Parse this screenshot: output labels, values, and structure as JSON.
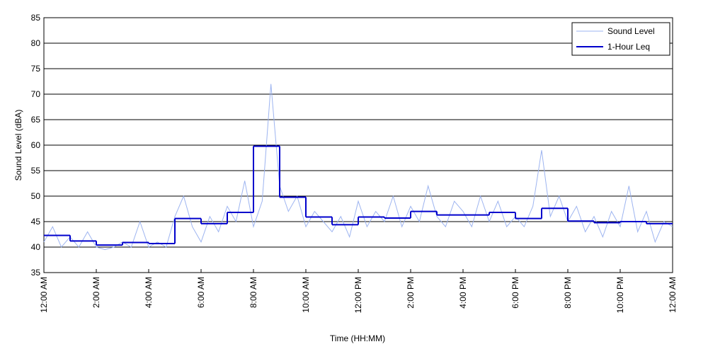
{
  "chart_data": {
    "type": "line",
    "xlabel": "Time (HH:MM)",
    "ylabel": "Sound Level (dBA)",
    "xlim": [
      0,
      1440
    ],
    "ylim": [
      35,
      85
    ],
    "xticks": [
      {
        "value": 0,
        "label": "12:00 AM"
      },
      {
        "value": 120,
        "label": "2:00 AM"
      },
      {
        "value": 240,
        "label": "4:00 AM"
      },
      {
        "value": 360,
        "label": "6:00 AM"
      },
      {
        "value": 480,
        "label": "8:00 AM"
      },
      {
        "value": 600,
        "label": "10:00 AM"
      },
      {
        "value": 720,
        "label": "12:00 PM"
      },
      {
        "value": 840,
        "label": "2:00 PM"
      },
      {
        "value": 960,
        "label": "4:00 PM"
      },
      {
        "value": 1080,
        "label": "6:00 PM"
      },
      {
        "value": 1200,
        "label": "8:00 PM"
      },
      {
        "value": 1320,
        "label": "10:00 PM"
      },
      {
        "value": 1440,
        "label": "12:00 AM"
      }
    ],
    "yticks": [
      35,
      40,
      45,
      50,
      55,
      60,
      65,
      70,
      75,
      80,
      85
    ],
    "grid": true,
    "legend": "upper right",
    "series": [
      {
        "name": "Sound Level",
        "color": "#9db4f0",
        "x": [
          0,
          20,
          40,
          60,
          80,
          100,
          120,
          140,
          160,
          180,
          200,
          220,
          240,
          260,
          280,
          300,
          320,
          340,
          360,
          380,
          400,
          420,
          440,
          460,
          480,
          500,
          520,
          540,
          560,
          580,
          600,
          620,
          640,
          660,
          680,
          700,
          720,
          740,
          760,
          780,
          800,
          820,
          840,
          860,
          880,
          900,
          920,
          940,
          960,
          980,
          1000,
          1020,
          1040,
          1060,
          1080,
          1100,
          1120,
          1140,
          1160,
          1180,
          1200,
          1220,
          1240,
          1260,
          1280,
          1300,
          1320,
          1340,
          1360,
          1380,
          1400,
          1420,
          1440
        ],
        "values": [
          41,
          44,
          40,
          42,
          40,
          43,
          40,
          39.5,
          40,
          41,
          40,
          45,
          40,
          41,
          40,
          46,
          50,
          44,
          41,
          46,
          43,
          48,
          45,
          53,
          44,
          49,
          72,
          52,
          47,
          50,
          44,
          47,
          45,
          43,
          46,
          42,
          49,
          44,
          47,
          45,
          50,
          44,
          48,
          45,
          52,
          46,
          44,
          49,
          47,
          44,
          50,
          45,
          49,
          44,
          46,
          44,
          48,
          59,
          46,
          50,
          45,
          48,
          43,
          46,
          42,
          47,
          44,
          52,
          43,
          47,
          41,
          45,
          44
        ]
      },
      {
        "name": "1-Hour Leq",
        "color": "#0000cc",
        "x": [
          0,
          60,
          120,
          180,
          240,
          300,
          360,
          420,
          480,
          540,
          600,
          660,
          720,
          780,
          840,
          900,
          960,
          1020,
          1080,
          1140,
          1200,
          1260,
          1320,
          1380
        ],
        "values": [
          42.3,
          41.2,
          40.4,
          40.9,
          40.7,
          45.6,
          44.6,
          46.8,
          59.8,
          49.8,
          45.9,
          44.4,
          45.9,
          45.7,
          47.0,
          46.3,
          46.3,
          46.8,
          45.6,
          47.6,
          45.1,
          44.8,
          45.0,
          44.6
        ]
      }
    ]
  }
}
